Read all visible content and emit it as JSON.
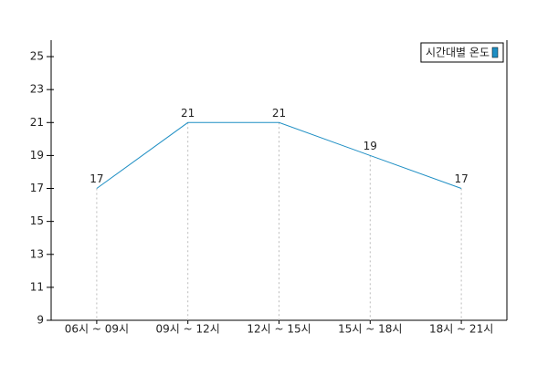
{
  "chart_data": {
    "type": "line",
    "categories": [
      "06시 ~ 09시",
      "09시 ~ 12시",
      "12시 ~ 15시",
      "15시 ~ 18시",
      "18시 ~ 21시"
    ],
    "series": [
      {
        "name": "시간대별 온도",
        "color": "#1f8fc4",
        "values": [
          17,
          21,
          21,
          19,
          17
        ]
      }
    ],
    "ylim": [
      9,
      26
    ],
    "yticks": [
      9,
      11,
      13,
      15,
      17,
      19,
      21,
      23,
      25
    ],
    "legend": "top-right",
    "drop_lines": true
  }
}
